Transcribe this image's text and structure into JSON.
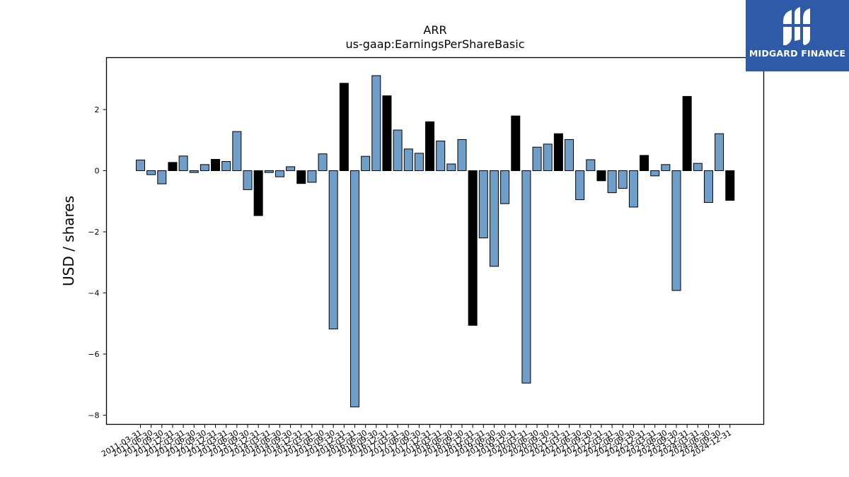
{
  "brand": {
    "name": "MIDGARD FINANCE",
    "bg_color": "#2f5aa8"
  },
  "chart_data": {
    "type": "bar",
    "title": "ARR",
    "subtitle": "us-gaap:EarningsPerShareBasic",
    "xlabel": "",
    "ylabel": "USD / shares",
    "ylim": [
      -8.3,
      3.7
    ],
    "yticks": [
      2,
      0,
      -2,
      -4,
      -6,
      -8
    ],
    "ytick_labels": [
      "2",
      "0",
      "−2",
      "−4",
      "−6",
      "−8"
    ],
    "grid": false,
    "colors": {
      "quarterly": "#6f9ec9",
      "annual": "#000000",
      "edge": "#000000"
    },
    "categories": [
      "2011-03-31",
      "2011-06-30",
      "2011-09-30",
      "2011-12-31",
      "2012-03-31",
      "2012-06-30",
      "2012-09-30",
      "2012-12-31",
      "2013-03-31",
      "2013-06-30",
      "2013-09-30",
      "2013-12-31",
      "2014-03-31",
      "2014-06-30",
      "2014-09-30",
      "2014-12-31",
      "2015-03-31",
      "2015-06-30",
      "2015-09-30",
      "2015-12-31",
      "2016-03-31",
      "2016-06-30",
      "2016-09-30",
      "2016-12-31",
      "2017-03-31",
      "2017-06-30",
      "2017-09-30",
      "2017-12-31",
      "2018-03-31",
      "2018-06-30",
      "2018-09-30",
      "2018-12-31",
      "2019-03-31",
      "2019-06-30",
      "2019-09-30",
      "2019-12-31",
      "2020-03-31",
      "2020-06-30",
      "2020-09-30",
      "2020-12-31",
      "2021-03-31",
      "2021-06-30",
      "2021-09-30",
      "2021-12-31",
      "2022-03-31",
      "2022-06-30",
      "2022-09-30",
      "2022-12-31",
      "2023-03-31",
      "2023-06-30",
      "2023-09-30",
      "2023-12-31",
      "2024-03-31",
      "2024-06-30",
      "2024-09-30",
      "2024-12-31"
    ],
    "tick_labels": [
      "2011-03-31",
      "2011-06-30",
      "2011-09-30",
      "2011-12-31",
      "2012-03-31",
      "2012-06-30",
      "2012-09-30",
      "2012-12-31",
      "2013-03-31",
      "2013-06-30",
      "2013-09-30",
      "2013-12-31",
      "2014-03-31",
      "2014-06-30",
      "2014-09-30",
      "2014-12-31",
      "2015-03-31",
      "2015-06-30",
      "2015-09-30",
      "2015-12-31",
      "2016-03-31",
      "2016-06-30",
      "2016-09-30",
      "2016-12-31",
      "2017-03-31",
      "2017-06-30",
      "2017-09-30",
      "2017-12-31",
      "2018-03-31",
      "2018-06-30",
      "2018-09-30",
      "2018-12-31",
      "2019-03-31",
      "2019-06-30",
      "2019-09-30",
      "2019-12-31",
      "2020-03-31",
      "2020-06-30",
      "2020-09-30",
      "2020-12-31",
      "2021-03-31",
      "2021-06-30",
      "2021-09-30",
      "2021-12-31",
      "2022-03-31",
      "2022-06-30",
      "2022-09-30",
      "2022-12-31",
      "2023-03-31",
      "2023-06-30",
      "2023-09-30",
      "2023-12-31",
      "2024-03-31",
      "2024-06-30",
      "2024-09-30",
      "2024-12-31"
    ],
    "values": [
      0.35,
      -0.13,
      -0.43,
      0.27,
      0.48,
      -0.06,
      0.2,
      0.37,
      0.3,
      1.28,
      -0.62,
      -1.47,
      -0.06,
      -0.2,
      0.13,
      -0.42,
      -0.38,
      0.55,
      -5.18,
      2.86,
      -7.73,
      0.47,
      3.11,
      2.45,
      1.33,
      0.71,
      0.57,
      1.6,
      0.97,
      0.22,
      1.02,
      -5.06,
      -2.2,
      -3.13,
      -1.08,
      1.79,
      -6.95,
      0.77,
      0.87,
      1.21,
      1.02,
      -0.95,
      0.36,
      -0.33,
      -0.72,
      -0.58,
      -1.19,
      0.5,
      -0.17,
      0.2,
      -3.92,
      2.43,
      0.24,
      -1.04,
      1.21,
      -0.97
    ],
    "annual": [
      false,
      false,
      false,
      true,
      false,
      false,
      false,
      true,
      false,
      false,
      false,
      true,
      false,
      false,
      false,
      true,
      false,
      false,
      false,
      true,
      false,
      false,
      false,
      true,
      false,
      false,
      false,
      true,
      false,
      false,
      false,
      true,
      false,
      false,
      false,
      true,
      false,
      false,
      false,
      true,
      false,
      false,
      false,
      true,
      false,
      false,
      false,
      true,
      false,
      false,
      false,
      true,
      false,
      false,
      false,
      true
    ]
  }
}
